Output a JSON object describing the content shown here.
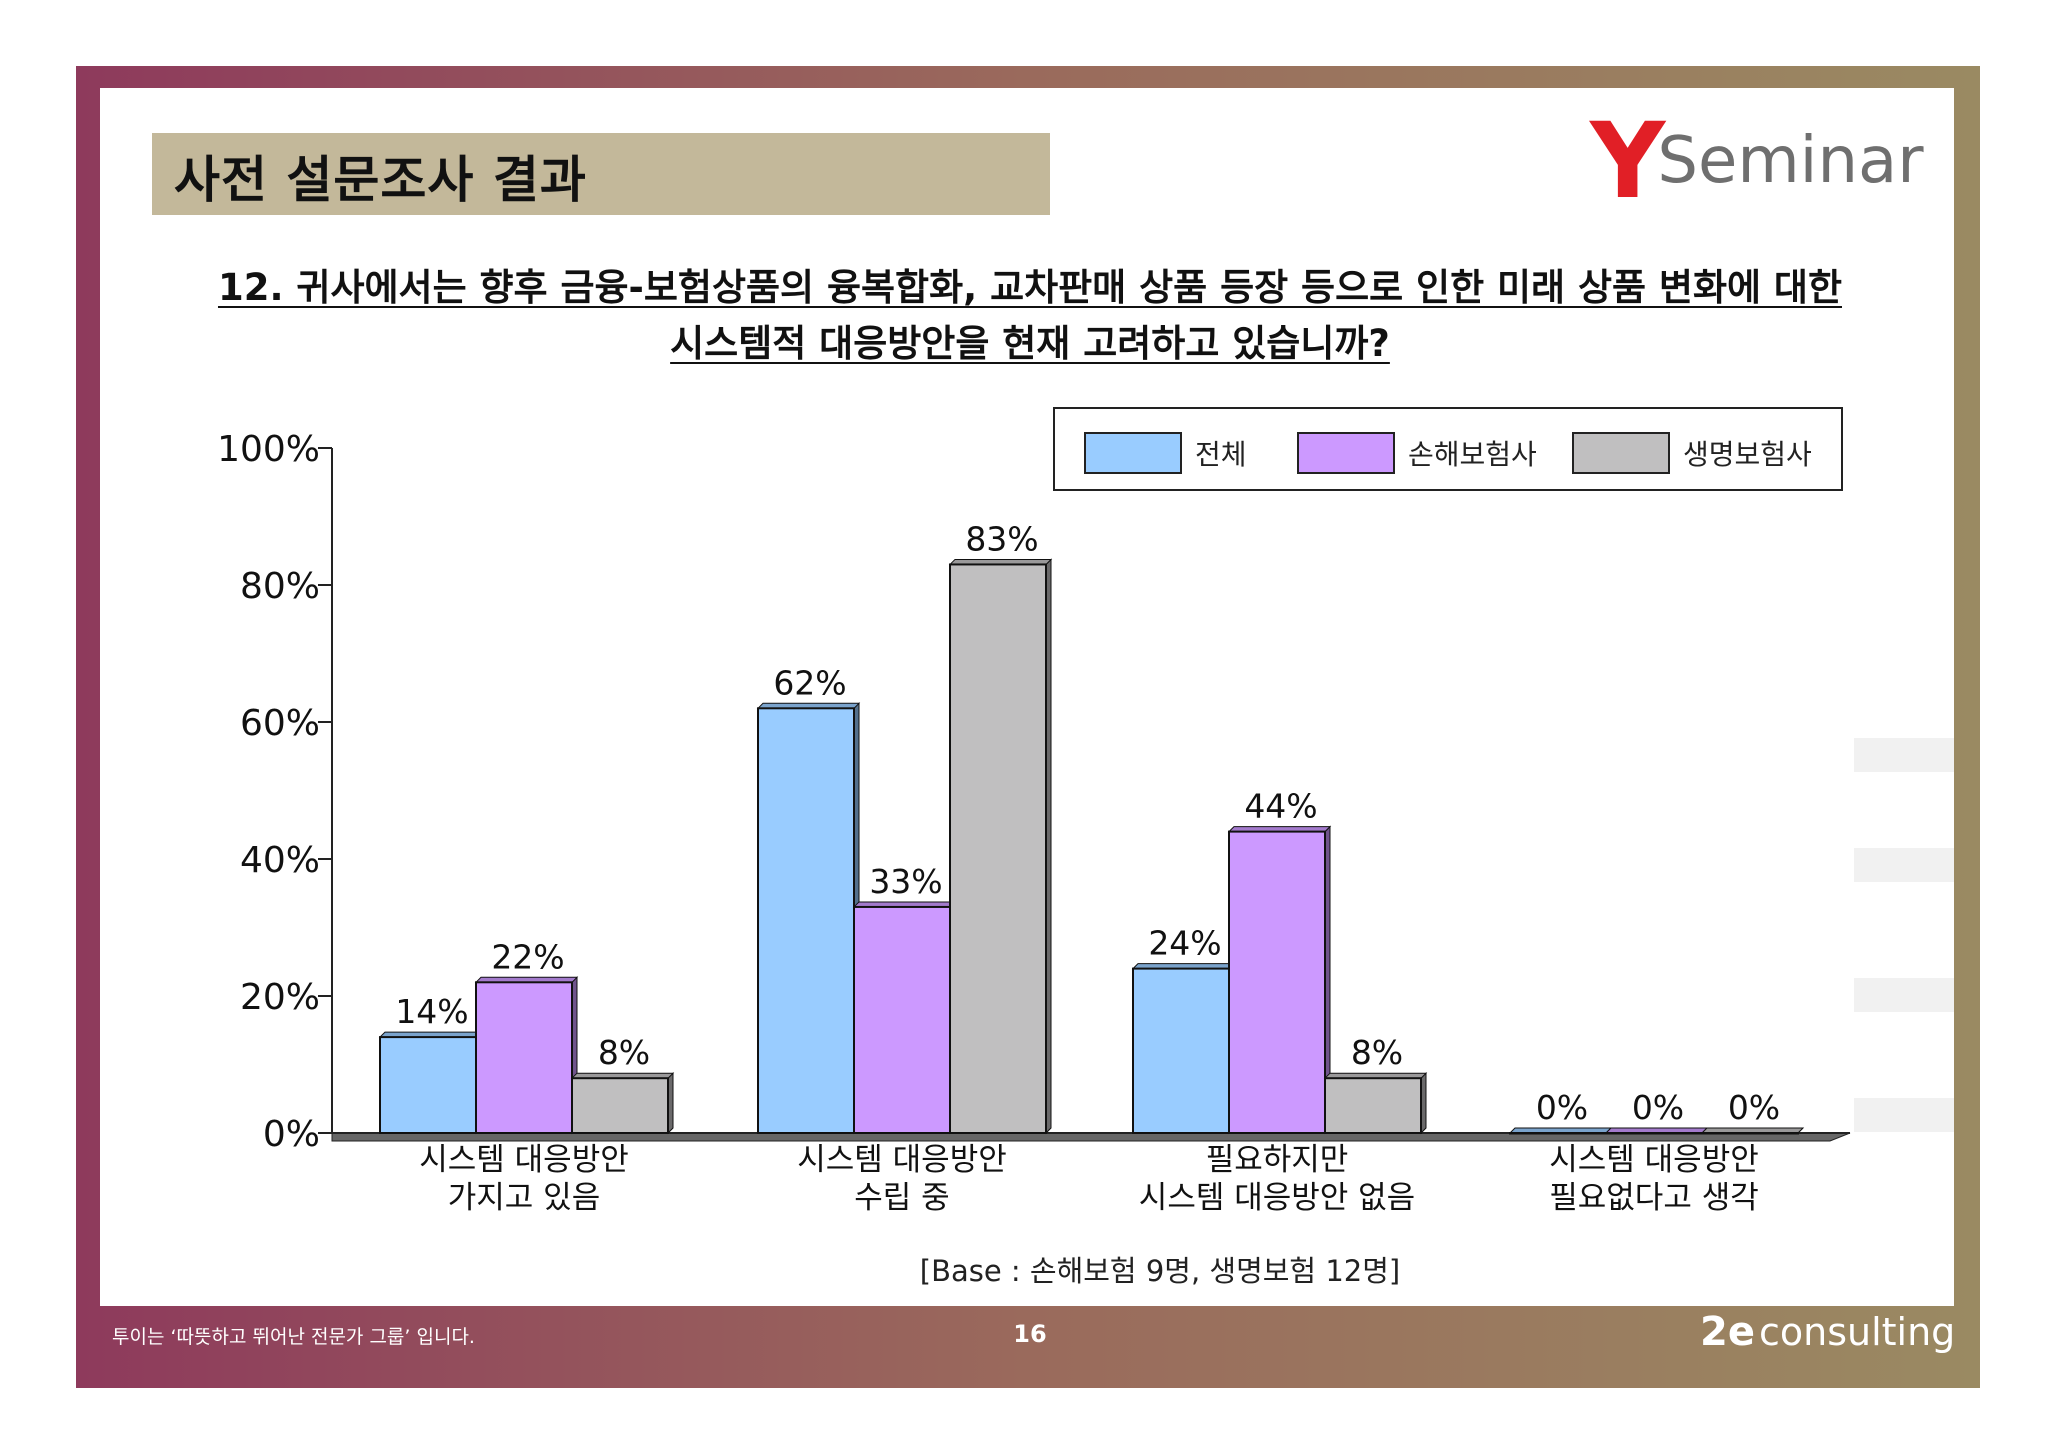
{
  "slide": {
    "title": "사전 설문조사 결과",
    "logo_letter": "Y",
    "logo_word": "Seminar",
    "question_line1": "12. 귀사에서는 향후 금융-보험상품의 융복합화, 교차판매 상품 등장 등으로 인한 미래 상품 변화에 대한",
    "question_line2": "시스템적 대응방안을 현재 고려하고 있습니까?",
    "base_note": "[Base :  손해보험 9명, 생명보험  12명]",
    "footer_tagline": "투이는 ‘따뜻하고 뛰어난 전문가 그룹’ 입니다.",
    "page_number": "16",
    "footer_brand_mark": "2e",
    "footer_brand_word": "consulting",
    "colors": {
      "frame_start": "#8e3a5c",
      "frame_end": "#9a8a62",
      "title_band": "#c3b89a",
      "logo_red": "#e11f26",
      "logo_gray": "#6f6f6f"
    }
  },
  "chart_data": {
    "type": "bar",
    "categories": [
      [
        "시스템 대응방안",
        "가지고 있음"
      ],
      [
        "시스템 대응방안",
        "수립 중"
      ],
      [
        "필요하지만",
        "시스템 대응방안 없음"
      ],
      [
        "시스템 대응방안",
        "필요없다고 생각"
      ]
    ],
    "series": [
      {
        "name": "전체",
        "color": "#99ccff",
        "values": [
          14,
          62,
          24,
          0
        ],
        "labels": [
          "14%",
          "62%",
          "24%",
          "0%"
        ]
      },
      {
        "name": "손해보험사",
        "color": "#cc99ff",
        "values": [
          22,
          33,
          44,
          0
        ],
        "labels": [
          "22%",
          "33%",
          "44%",
          "0%"
        ]
      },
      {
        "name": "생명보험사",
        "color": "#c0bfc0",
        "values": [
          8,
          83,
          8,
          0
        ],
        "labels": [
          "8%",
          "83%",
          "8%",
          "0%"
        ]
      }
    ],
    "yticks": [
      "0%",
      "20%",
      "40%",
      "60%",
      "80%",
      "100%"
    ],
    "ylim": [
      0,
      100
    ],
    "grid": false,
    "legend_position": "top-right",
    "style": "3d-clustered-column"
  }
}
